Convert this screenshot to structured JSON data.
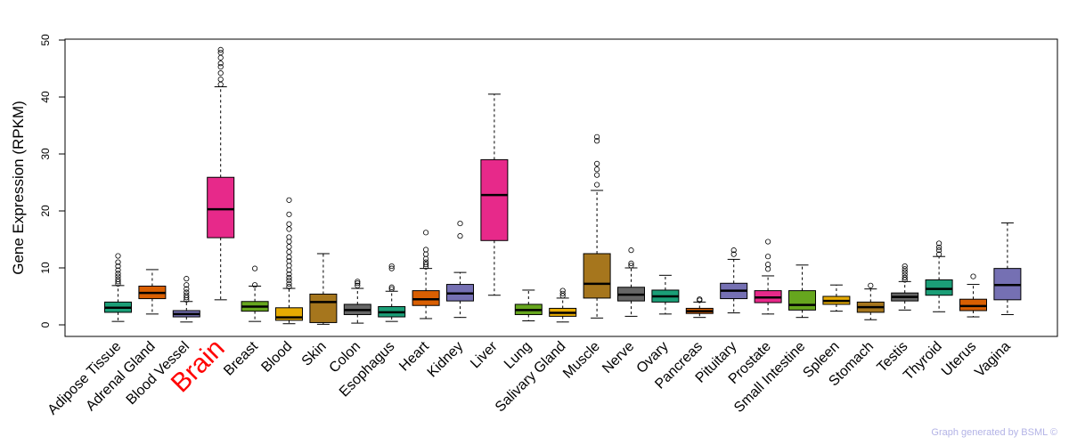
{
  "chart_data": {
    "type": "box",
    "title": "",
    "xlabel": "",
    "ylabel": "Gene Expression (RPKM)",
    "ylim": [
      0,
      50
    ],
    "yticks": [
      0,
      10,
      20,
      30,
      40,
      50
    ],
    "highlight": "Brain",
    "footer": "Graph generated by BSML ©",
    "categories": [
      "Adipose Tissue",
      "Adrenal Gland",
      "Blood Vessel",
      "Brain",
      "Breast",
      "Blood",
      "Skin",
      "Colon",
      "Esophagus",
      "Heart",
      "Kidney",
      "Liver",
      "Lung",
      "Salivary Gland",
      "Muscle",
      "Nerve",
      "Ovary",
      "Pancreas",
      "Pituitary",
      "Prostate",
      "Small Intestine",
      "Spleen",
      "Stomach",
      "Testis",
      "Thyroid",
      "Uterus",
      "Vagina"
    ],
    "boxes": [
      {
        "name": "Adipose Tissue",
        "color": "#1b9e77",
        "whisker_low": 0.6,
        "q1": 2.2,
        "median": 3.0,
        "q3": 4.0,
        "whisker_high": 6.9,
        "outliers": [
          7.2,
          7.6,
          8.0,
          8.5,
          9.0,
          9.6,
          10.3,
          11.0,
          12.1
        ]
      },
      {
        "name": "Adrenal Gland",
        "color": "#d95f02",
        "whisker_low": 1.9,
        "q1": 4.6,
        "median": 5.6,
        "q3": 6.8,
        "whisker_high": 9.7,
        "outliers": []
      },
      {
        "name": "Blood Vessel",
        "color": "#7570b3",
        "whisker_low": 0.5,
        "q1": 1.4,
        "median": 1.9,
        "q3": 2.5,
        "whisker_high": 4.1,
        "outliers": [
          4.4,
          4.8,
          5.2,
          5.7,
          6.3,
          7.0,
          8.1
        ]
      },
      {
        "name": "Brain",
        "color": "#e7298a",
        "whisker_low": 4.4,
        "q1": 15.3,
        "median": 20.3,
        "q3": 25.9,
        "whisker_high": 41.8,
        "outliers": [
          42.2,
          43.1,
          44.2,
          45.3,
          45.9,
          46.9,
          47.8,
          48.3
        ]
      },
      {
        "name": "Breast",
        "color": "#66a61e",
        "whisker_low": 0.6,
        "q1": 2.4,
        "median": 3.2,
        "q3": 4.1,
        "whisker_high": 6.8,
        "outliers": [
          7.0,
          9.9
        ]
      },
      {
        "name": "Blood",
        "color": "#e6ab02",
        "whisker_low": 0.2,
        "q1": 0.8,
        "median": 1.3,
        "q3": 3.0,
        "whisker_high": 6.4,
        "outliers": [
          6.7,
          7.2,
          7.8,
          8.3,
          8.9,
          9.6,
          10.4,
          11.2,
          11.9,
          12.8,
          13.7,
          14.6,
          15.4,
          16.8,
          17.7,
          19.4,
          21.9
        ]
      },
      {
        "name": "Skin",
        "color": "#a6761d",
        "whisker_low": 0.1,
        "q1": 0.4,
        "median": 4.0,
        "q3": 5.4,
        "whisker_high": 12.5,
        "outliers": []
      },
      {
        "name": "Colon",
        "color": "#666666",
        "whisker_low": 0.3,
        "q1": 1.8,
        "median": 2.6,
        "q3": 3.6,
        "whisker_high": 6.4,
        "outliers": [
          6.9,
          7.3,
          7.6
        ]
      },
      {
        "name": "Esophagus",
        "color": "#1b9e77",
        "whisker_low": 0.6,
        "q1": 1.4,
        "median": 2.2,
        "q3": 3.2,
        "whisker_high": 5.9,
        "outliers": [
          6.3,
          6.6,
          9.9,
          10.3
        ]
      },
      {
        "name": "Heart",
        "color": "#d95f02",
        "whisker_low": 1.1,
        "q1": 3.4,
        "median": 4.5,
        "q3": 6.0,
        "whisker_high": 9.9,
        "outliers": [
          10.2,
          10.6,
          11.0,
          11.6,
          12.4,
          13.2,
          16.2
        ]
      },
      {
        "name": "Kidney",
        "color": "#7570b3",
        "whisker_low": 1.3,
        "q1": 4.2,
        "median": 5.5,
        "q3": 7.1,
        "whisker_high": 9.2,
        "outliers": [
          15.6,
          17.8
        ]
      },
      {
        "name": "Liver",
        "color": "#e7298a",
        "whisker_low": 5.2,
        "q1": 14.8,
        "median": 22.8,
        "q3": 29.0,
        "whisker_high": 40.5,
        "outliers": []
      },
      {
        "name": "Lung",
        "color": "#66a61e",
        "whisker_low": 0.7,
        "q1": 1.8,
        "median": 2.6,
        "q3": 3.6,
        "whisker_high": 6.1,
        "outliers": []
      },
      {
        "name": "Salivary Gland",
        "color": "#e6ab02",
        "whisker_low": 0.5,
        "q1": 1.5,
        "median": 2.1,
        "q3": 2.9,
        "whisker_high": 4.7,
        "outliers": [
          5.1,
          5.5,
          6.0
        ]
      },
      {
        "name": "Muscle",
        "color": "#a6761d",
        "whisker_low": 1.2,
        "q1": 4.7,
        "median": 7.2,
        "q3": 12.5,
        "whisker_high": 23.6,
        "outliers": [
          24.6,
          26.3,
          27.3,
          28.3,
          32.3,
          33.0
        ]
      },
      {
        "name": "Nerve",
        "color": "#666666",
        "whisker_low": 1.5,
        "q1": 4.2,
        "median": 5.3,
        "q3": 6.6,
        "whisker_high": 10.0,
        "outliers": [
          10.4,
          10.8,
          13.1
        ]
      },
      {
        "name": "Ovary",
        "color": "#1b9e77",
        "whisker_low": 1.9,
        "q1": 4.0,
        "median": 5.0,
        "q3": 6.1,
        "whisker_high": 8.7,
        "outliers": []
      },
      {
        "name": "Pancreas",
        "color": "#d95f02",
        "whisker_low": 1.3,
        "q1": 2.0,
        "median": 2.4,
        "q3": 2.9,
        "whisker_high": 4.0,
        "outliers": [
          4.3,
          4.5
        ]
      },
      {
        "name": "Pituitary",
        "color": "#7570b3",
        "whisker_low": 2.1,
        "q1": 4.6,
        "median": 6.0,
        "q3": 7.3,
        "whisker_high": 11.5,
        "outliers": [
          12.4,
          13.1
        ]
      },
      {
        "name": "Prostate",
        "color": "#e7298a",
        "whisker_low": 1.9,
        "q1": 3.9,
        "median": 4.8,
        "q3": 6.0,
        "whisker_high": 8.6,
        "outliers": [
          9.8,
          10.6,
          12.0,
          14.6
        ]
      },
      {
        "name": "Small Intestine",
        "color": "#66a61e",
        "whisker_low": 1.3,
        "q1": 2.6,
        "median": 3.5,
        "q3": 6.0,
        "whisker_high": 10.5,
        "outliers": []
      },
      {
        "name": "Spleen",
        "color": "#e6ab02",
        "whisker_low": 2.4,
        "q1": 3.6,
        "median": 4.2,
        "q3": 5.0,
        "whisker_high": 7.0,
        "outliers": []
      },
      {
        "name": "Stomach",
        "color": "#a6761d",
        "whisker_low": 0.9,
        "q1": 2.2,
        "median": 3.1,
        "q3": 4.0,
        "whisker_high": 6.3,
        "outliers": [
          6.9
        ]
      },
      {
        "name": "Testis",
        "color": "#666666",
        "whisker_low": 2.6,
        "q1": 4.2,
        "median": 4.9,
        "q3": 5.6,
        "whisker_high": 7.6,
        "outliers": [
          7.9,
          8.3,
          8.8,
          9.3,
          9.8,
          10.3
        ]
      },
      {
        "name": "Thyroid",
        "color": "#1b9e77",
        "whisker_low": 2.3,
        "q1": 5.2,
        "median": 6.3,
        "q3": 7.9,
        "whisker_high": 12.0,
        "outliers": [
          12.4,
          13.1,
          13.6,
          14.3
        ]
      },
      {
        "name": "Uterus",
        "color": "#d95f02",
        "whisker_low": 1.4,
        "q1": 2.5,
        "median": 3.3,
        "q3": 4.5,
        "whisker_high": 7.1,
        "outliers": [
          8.5
        ]
      },
      {
        "name": "Vagina",
        "color": "#7570b3",
        "whisker_low": 1.8,
        "q1": 4.4,
        "median": 7.0,
        "q3": 9.9,
        "whisker_high": 17.9,
        "outliers": []
      }
    ]
  }
}
